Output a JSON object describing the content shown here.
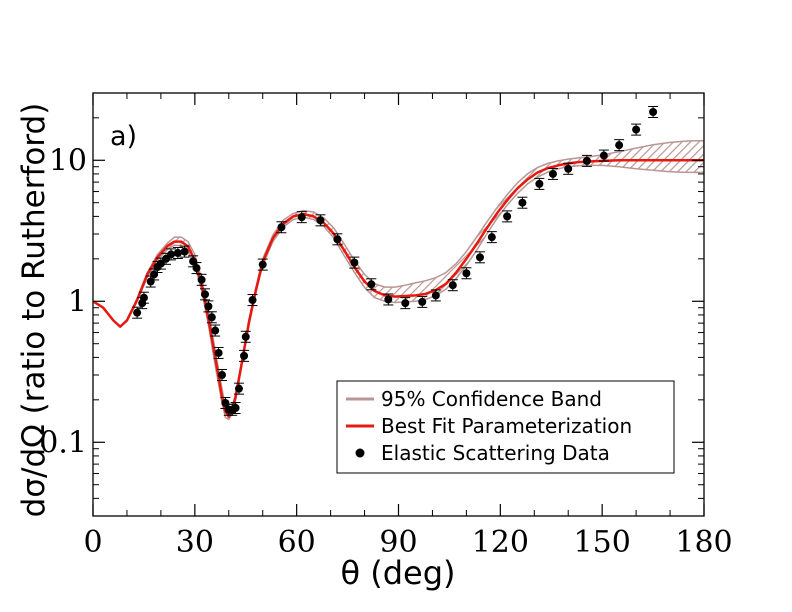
{
  "chart_data": {
    "type": "scatter",
    "panel_label": "a)",
    "xlabel": "θ (deg)",
    "ylabel": "dσ/dΩ (ratio to Rutherford)",
    "xlim": [
      0,
      180
    ],
    "ylim": [
      0.03,
      30
    ],
    "yscale": "log",
    "x_ticks": [
      0,
      30,
      60,
      90,
      120,
      150,
      180
    ],
    "x_tick_labels": [
      "0",
      "30",
      "60",
      "90",
      "120",
      "150",
      "180"
    ],
    "y_ticks": [
      0.1,
      1,
      10
    ],
    "y_tick_labels": [
      "0.1",
      "1",
      "10"
    ],
    "legend_position": "bottom-right",
    "series": [
      {
        "name": "95% Confidence Band",
        "kind": "band",
        "color": "#b99694",
        "x": [
          0,
          3,
          6,
          8,
          10,
          13,
          16,
          19,
          22,
          24,
          26,
          28,
          30,
          32,
          34,
          36,
          38,
          39,
          40,
          41,
          42,
          44,
          46,
          48,
          50,
          53,
          56,
          59,
          62,
          65,
          68,
          71,
          74,
          77,
          80,
          83,
          86,
          89,
          92,
          95,
          98,
          101,
          104,
          107,
          110,
          113,
          116,
          119,
          122,
          125,
          128,
          131,
          134,
          137,
          140,
          143,
          146,
          150,
          155,
          160,
          165,
          170,
          175,
          180
        ],
        "lower": [
          1.0,
          0.9,
          0.73,
          0.66,
          0.72,
          1.0,
          1.48,
          1.95,
          2.35,
          2.5,
          2.48,
          2.25,
          1.8,
          1.2,
          0.68,
          0.35,
          0.19,
          0.15,
          0.145,
          0.16,
          0.2,
          0.37,
          0.68,
          1.15,
          1.8,
          2.65,
          3.35,
          3.8,
          3.95,
          3.8,
          3.4,
          2.8,
          2.1,
          1.6,
          1.25,
          1.06,
          1.0,
          0.98,
          0.99,
          1.0,
          1.03,
          1.1,
          1.22,
          1.45,
          1.8,
          2.3,
          3.0,
          3.85,
          4.8,
          5.8,
          6.8,
          7.6,
          8.25,
          8.7,
          9.0,
          9.15,
          9.2,
          9.2,
          9.0,
          8.7,
          8.5,
          8.3,
          8.2,
          8.2
        ],
        "upper": [
          1.0,
          0.9,
          0.73,
          0.66,
          0.74,
          1.05,
          1.6,
          2.15,
          2.6,
          2.85,
          2.85,
          2.65,
          2.15,
          1.45,
          0.85,
          0.45,
          0.24,
          0.18,
          0.165,
          0.18,
          0.22,
          0.4,
          0.75,
          1.25,
          2.0,
          2.95,
          3.75,
          4.2,
          4.4,
          4.3,
          3.9,
          3.3,
          2.55,
          1.95,
          1.55,
          1.33,
          1.26,
          1.26,
          1.3,
          1.35,
          1.4,
          1.47,
          1.6,
          1.85,
          2.25,
          2.85,
          3.65,
          4.6,
          5.7,
          6.9,
          8.0,
          8.9,
          9.5,
          9.9,
          10.2,
          10.4,
          10.6,
          10.9,
          11.5,
          12.2,
          12.9,
          13.4,
          13.7,
          13.8
        ]
      },
      {
        "name": "Best Fit Parameterization",
        "kind": "line",
        "color": "#e8180f",
        "x": [
          0,
          3,
          6,
          8,
          10,
          13,
          16,
          19,
          22,
          24,
          26,
          28,
          30,
          32,
          34,
          36,
          38,
          39,
          40,
          41,
          42,
          44,
          46,
          48,
          50,
          53,
          56,
          59,
          62,
          65,
          68,
          71,
          74,
          77,
          80,
          83,
          86,
          89,
          92,
          95,
          98,
          101,
          104,
          107,
          110,
          113,
          116,
          119,
          122,
          125,
          128,
          131,
          134,
          137,
          140,
          143,
          146,
          150,
          155,
          160,
          165,
          170,
          175,
          180
        ],
        "y": [
          1.0,
          0.9,
          0.73,
          0.66,
          0.73,
          1.02,
          1.55,
          2.05,
          2.48,
          2.65,
          2.65,
          2.45,
          1.95,
          1.3,
          0.75,
          0.4,
          0.21,
          0.165,
          0.152,
          0.17,
          0.21,
          0.385,
          0.72,
          1.2,
          1.9,
          2.8,
          3.55,
          4.0,
          4.15,
          4.0,
          3.6,
          3.0,
          2.3,
          1.75,
          1.38,
          1.18,
          1.1,
          1.08,
          1.09,
          1.1,
          1.13,
          1.2,
          1.33,
          1.6,
          2.0,
          2.55,
          3.3,
          4.2,
          5.2,
          6.3,
          7.3,
          8.2,
          8.8,
          9.2,
          9.5,
          9.7,
          9.8,
          9.9,
          10.0,
          10.0,
          10.0,
          10.0,
          10.0,
          10.0
        ]
      },
      {
        "name": "Elastic Scattering Data",
        "kind": "points",
        "color": "#000000",
        "x": [
          13,
          14.5,
          15,
          17,
          18,
          19,
          20,
          21.5,
          23,
          25,
          27,
          29.5,
          30.5,
          32,
          33,
          34,
          35,
          36,
          37,
          38,
          39,
          40,
          41,
          42,
          43,
          44.5,
          45,
          47,
          50,
          55.5,
          61.5,
          67,
          72,
          77,
          82,
          87,
          92,
          97,
          101,
          106,
          110,
          114,
          117.5,
          122,
          126.5,
          131.5,
          135.5,
          140,
          145.5,
          150.5,
          155,
          160,
          165
        ],
        "y": [
          0.83,
          0.97,
          1.06,
          1.38,
          1.55,
          1.75,
          1.85,
          2.0,
          2.15,
          2.2,
          2.25,
          1.92,
          1.72,
          1.42,
          1.12,
          0.92,
          0.77,
          0.62,
          0.43,
          0.3,
          0.19,
          0.17,
          0.17,
          0.175,
          0.24,
          0.41,
          0.56,
          1.02,
          1.82,
          3.35,
          3.95,
          3.75,
          2.75,
          1.88,
          1.32,
          1.03,
          0.97,
          0.99,
          1.1,
          1.3,
          1.58,
          2.05,
          2.85,
          4.0,
          5.0,
          6.8,
          8.0,
          8.7,
          9.9,
          10.8,
          12.8,
          16.5,
          22.0
        ]
      }
    ]
  }
}
